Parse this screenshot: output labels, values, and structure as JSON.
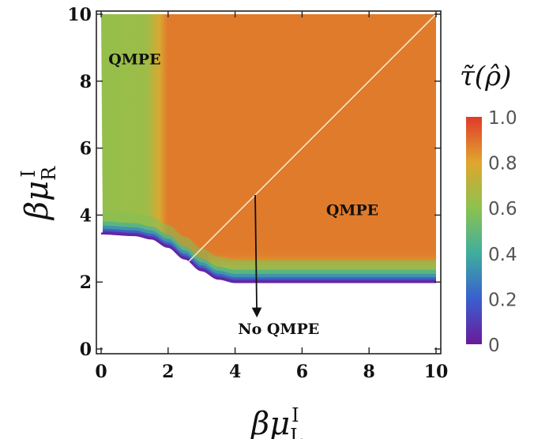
{
  "chart_data": {
    "type": "heatmap",
    "title": "",
    "xlabel": {
      "base": "βμ",
      "sup": "I",
      "sub": "L"
    },
    "ylabel": {
      "base": "βμ",
      "sup": "I",
      "sub": "R"
    },
    "xlim": [
      0,
      10
    ],
    "ylim": [
      0,
      10
    ],
    "x_ticks": [
      "0",
      "2",
      "4",
      "6",
      "8",
      "10"
    ],
    "y_ticks": [
      "0",
      "2",
      "4",
      "6",
      "8",
      "10"
    ],
    "colorbar": {
      "label": "τ̃(ρ̂)",
      "range": [
        0,
        1
      ],
      "ticks": [
        "0",
        "0.2",
        "0.4",
        "0.6",
        "0.8",
        "1.0"
      ],
      "stops": [
        {
          "value": 0.0,
          "color": "#6a1a9a"
        },
        {
          "value": 0.2,
          "color": "#3a5fd0"
        },
        {
          "value": 0.4,
          "color": "#3fae9e"
        },
        {
          "value": 0.6,
          "color": "#8cc24e"
        },
        {
          "value": 0.8,
          "color": "#e0a62e"
        },
        {
          "value": 1.0,
          "color": "#e03a2a"
        }
      ]
    },
    "regions": [
      {
        "label": "QMPE",
        "x": 1.0,
        "y": 8.5,
        "value": 0.62
      },
      {
        "label": "QMPE",
        "x": 7.5,
        "y": 4.0,
        "value": 0.88
      },
      {
        "label": "No QMPE",
        "x": 5.3,
        "y": 0.45,
        "value": 0.0
      }
    ],
    "boundary_curve": {
      "points": [
        [
          0,
          3.45
        ],
        [
          1,
          3.4
        ],
        [
          1.5,
          3.3
        ],
        [
          2,
          3.05
        ],
        [
          2.5,
          2.7
        ],
        [
          3,
          2.35
        ],
        [
          3.5,
          2.1
        ],
        [
          4,
          2.0
        ],
        [
          10,
          2.0
        ]
      ]
    },
    "diagonal_line": {
      "from": [
        2.6,
        2.6
      ],
      "to": [
        10,
        10
      ]
    },
    "arrow": {
      "from": [
        4.6,
        4.6
      ],
      "to": [
        4.65,
        1.0
      ]
    }
  }
}
